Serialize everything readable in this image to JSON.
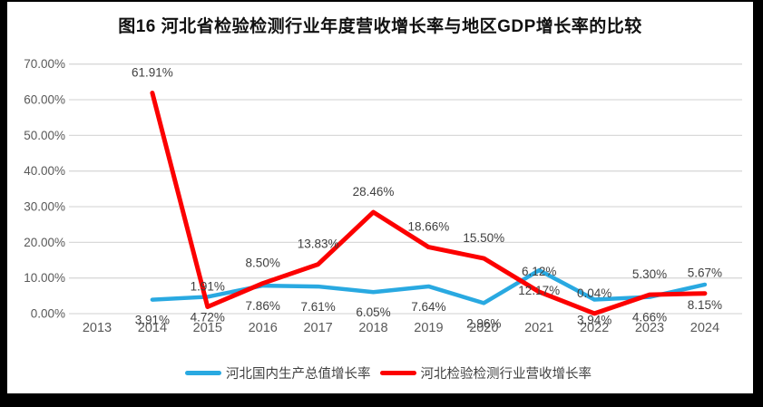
{
  "chart_data": {
    "type": "line",
    "title": "图16 河北省检验检测行业年度营收增长率与地区GDP增长率的比较",
    "categories": [
      "2013",
      "2014",
      "2015",
      "2016",
      "2017",
      "2018",
      "2019",
      "2020",
      "2021",
      "2022",
      "2023",
      "2024"
    ],
    "series": [
      {
        "name": "河北国内生产总值增长率",
        "color": "#29A9E1",
        "label_position": "below",
        "values": [
          null,
          3.91,
          4.72,
          7.86,
          7.61,
          6.05,
          7.64,
          2.96,
          12.17,
          3.94,
          4.66,
          8.15
        ],
        "labels": [
          "",
          "3.91%",
          "4.72%",
          "7.86%",
          "7.61%",
          "6.05%",
          "7.64%",
          "2.96%",
          "12.17%",
          "3.94%",
          "4.66%",
          "8.15%"
        ]
      },
      {
        "name": "河北检验检测行业营收增长率",
        "color": "#FC0000",
        "label_position": "above",
        "values": [
          null,
          61.91,
          1.91,
          8.5,
          13.83,
          28.46,
          18.66,
          15.5,
          6.12,
          0.04,
          5.3,
          5.67
        ],
        "labels": [
          "",
          "61.91%",
          "1.91%",
          "8.50%",
          "13.83%",
          "28.46%",
          "18.66%",
          "15.50%",
          "6.12%",
          "0.04%",
          "5.30%",
          "5.67%"
        ]
      }
    ],
    "y_axis": {
      "min": 0,
      "max": 70,
      "step": 10,
      "tick_labels": [
        "70.00%",
        "60.00%",
        "50.00%",
        "40.00%",
        "30.00%",
        "20.00%",
        "10.00%",
        "0.00%"
      ]
    },
    "grid": true,
    "legend_position": "bottom",
    "colors": {
      "gridline": "#D9D9D9",
      "axis_tick_text": "#595959",
      "data_label_text": "#3F3F3F",
      "panel_background": "#FFFFFF",
      "frame_background": "#000000"
    }
  }
}
